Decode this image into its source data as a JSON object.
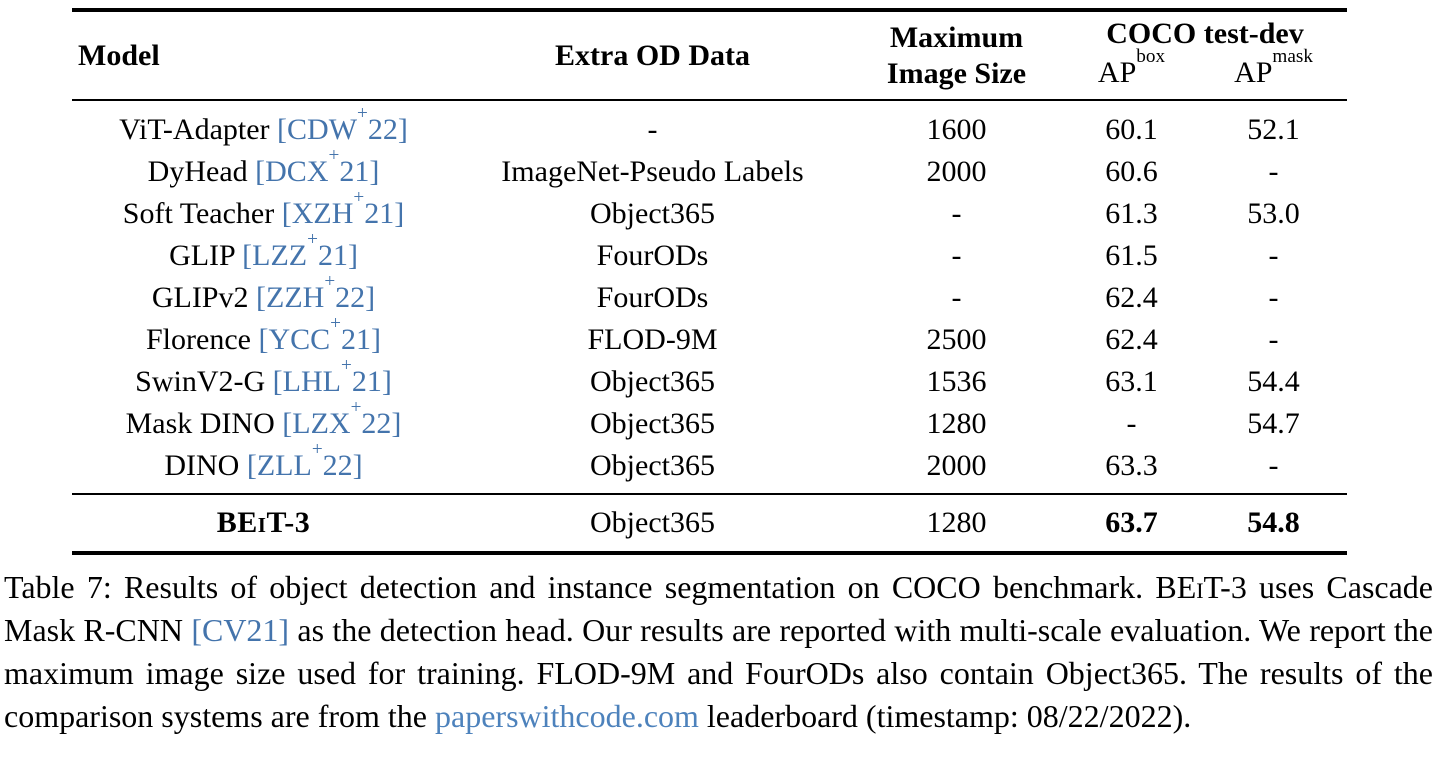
{
  "colors": {
    "text": "#000000",
    "rule": "#000000",
    "citation": "#4474ac",
    "link": "#4d82bc"
  },
  "table": {
    "headers": {
      "model": "Model",
      "extra_od_data": "Extra OD Data",
      "max_image_size_line1": "Maximum",
      "max_image_size_line2": "Image Size",
      "coco_group": "COCO test-dev",
      "ap_base": "AP",
      "ap_box_sup": "box",
      "ap_mask_sup": "mask"
    },
    "cite_open": "[",
    "cite_close": "]",
    "empty_value": "-",
    "rows": [
      {
        "model": "ViT-Adapter",
        "cite": "CDW+22",
        "extra": "-",
        "max_size": "1600",
        "ap_box": "60.1",
        "ap_mask": "52.1"
      },
      {
        "model": "DyHead",
        "cite": "DCX+21",
        "extra": "ImageNet-Pseudo Labels",
        "max_size": "2000",
        "ap_box": "60.6",
        "ap_mask": "-"
      },
      {
        "model": "Soft Teacher",
        "cite": "XZH+21",
        "extra": "Object365",
        "max_size": "-",
        "ap_box": "61.3",
        "ap_mask": "53.0"
      },
      {
        "model": "GLIP",
        "cite": "LZZ+21",
        "extra": "FourODs",
        "max_size": "-",
        "ap_box": "61.5",
        "ap_mask": "-"
      },
      {
        "model": "GLIPv2",
        "cite": "ZZH+22",
        "extra": "FourODs",
        "max_size": "-",
        "ap_box": "62.4",
        "ap_mask": "-"
      },
      {
        "model": "Florence",
        "cite": "YCC+21",
        "extra": "FLOD-9M",
        "max_size": "2500",
        "ap_box": "62.4",
        "ap_mask": "-"
      },
      {
        "model": "SwinV2-G",
        "cite": "LHL+21",
        "extra": "Object365",
        "max_size": "1536",
        "ap_box": "63.1",
        "ap_mask": "54.4"
      },
      {
        "model": "Mask DINO",
        "cite": "LZX+22",
        "extra": "Object365",
        "max_size": "1280",
        "ap_box": "-",
        "ap_mask": "54.7"
      },
      {
        "model": "DINO",
        "cite": "ZLL+22",
        "extra": "Object365",
        "max_size": "2000",
        "ap_box": "63.3",
        "ap_mask": "-"
      }
    ],
    "highlight_row": {
      "model": "BEiT-3",
      "cite": null,
      "extra": "Object365",
      "max_size": "1280",
      "ap_box": "63.7",
      "ap_mask": "54.8"
    }
  },
  "caption": {
    "segments": [
      {
        "style": "plain",
        "text": "Table 7: Results of object detection and instance segmentation on COCO benchmark. "
      },
      {
        "style": "smallcaps",
        "text": "BEiT-3"
      },
      {
        "style": "plain",
        "text": " uses Cascade Mask R-CNN "
      },
      {
        "style": "cite",
        "text": "[CV21]"
      },
      {
        "style": "plain",
        "text": " as the detection head. Our results are reported with multi-scale evaluation. We report the maximum image size used for training. FLOD-9M and FourODs also contain Object365. The results of the comparison systems are from the "
      },
      {
        "style": "link",
        "text": "paperswithcode.com"
      },
      {
        "style": "plain",
        "text": " leaderboard (timestamp: 08/22/2022)."
      }
    ]
  }
}
